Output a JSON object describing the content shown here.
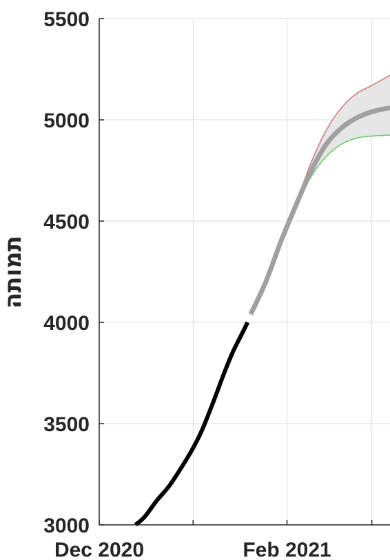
{
  "chart_data": {
    "type": "line",
    "xlabel": "",
    "ylabel": "תמותה",
    "x_axis": {
      "range": [
        "2020-12-01",
        "2021-03-07"
      ],
      "tick_dates": [
        "2020-12-01",
        "2021-01-01",
        "2021-02-01",
        "2021-03-01"
      ],
      "tick_labels": [
        "Dec 2020",
        "",
        "Feb 2021",
        ""
      ]
    },
    "y_axis": {
      "range": [
        3000,
        5500
      ],
      "ticks": [
        3000,
        3500,
        4000,
        4500,
        5000,
        5500
      ],
      "tick_labels": [
        "3000",
        "3500",
        "4000",
        "4500",
        "5000",
        "5500"
      ]
    },
    "grid": true,
    "colors": {
      "observed": "#000000",
      "forecast": "#a0a0a0",
      "upper": "#d47a7a",
      "lower": "#66cc66",
      "band": "#e6e6e6",
      "grid": "#dcdcdc",
      "axis": "#262626"
    },
    "series": [
      {
        "x": [
          "2020-12-13",
          "2020-12-16",
          "2020-12-20",
          "2020-12-24",
          "2020-12-28",
          "2021-01-01",
          "2021-01-04",
          "2021-01-08",
          "2021-01-11",
          "2021-01-14",
          "2021-01-17",
          "2021-01-19"
        ],
        "y": [
          3000,
          3040,
          3120,
          3190,
          3280,
          3380,
          3470,
          3620,
          3740,
          3850,
          3940,
          4000
        ]
      },
      {
        "x": [
          "2021-01-20",
          "2021-01-25",
          "2021-01-30",
          "2021-02-04",
          "2021-02-09",
          "2021-02-14",
          "2021-02-19",
          "2021-02-24",
          "2021-03-01",
          "2021-03-07"
        ],
        "y": [
          4040,
          4200,
          4400,
          4580,
          4750,
          4880,
          4960,
          5010,
          5040,
          5060
        ]
      },
      {
        "x": [
          "2021-01-20",
          "2021-01-25",
          "2021-01-30",
          "2021-02-04",
          "2021-02-09",
          "2021-02-14",
          "2021-02-19",
          "2021-02-24",
          "2021-03-01",
          "2021-03-07"
        ],
        "y": [
          4040,
          4200,
          4400,
          4590,
          4790,
          4950,
          5060,
          5130,
          5170,
          5220
        ]
      },
      {
        "x": [
          "2021-01-20",
          "2021-01-25",
          "2021-01-30",
          "2021-02-04",
          "2021-02-09",
          "2021-02-14",
          "2021-02-19",
          "2021-02-24",
          "2021-03-01",
          "2021-03-07"
        ],
        "y": [
          4040,
          4200,
          4400,
          4570,
          4720,
          4820,
          4880,
          4910,
          4920,
          4925
        ]
      }
    ]
  }
}
